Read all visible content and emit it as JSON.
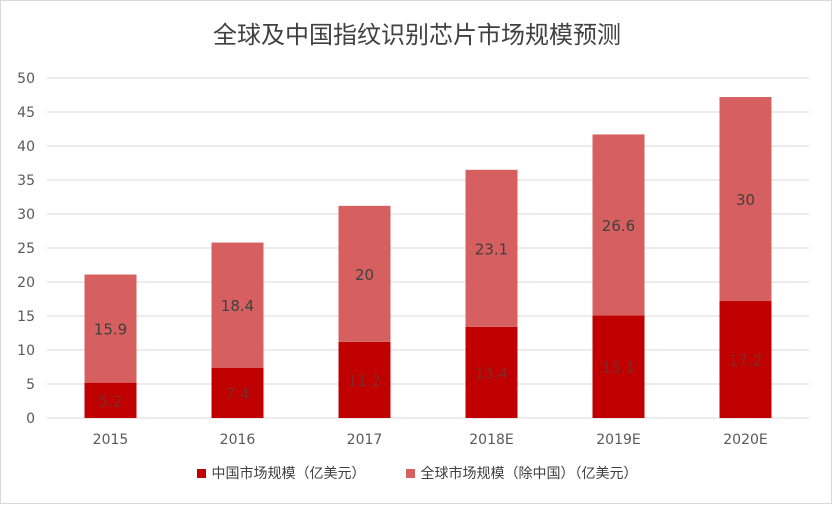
{
  "chart_data": {
    "type": "bar",
    "stacked": true,
    "title": "全球及中国指纹识别芯片市场规模预测",
    "categories": [
      "2015",
      "2016",
      "2017",
      "2018E",
      "2019E",
      "2020E"
    ],
    "series": [
      {
        "name": "中国市场规模（亿美元）",
        "values": [
          5.2,
          7.4,
          11.2,
          13.4,
          15.1,
          17.2
        ],
        "color": "#c00000",
        "label_color": "#7f2a2a"
      },
      {
        "name": "全球市场规模（除中国）（亿美元）",
        "values": [
          15.9,
          18.4,
          20,
          23.1,
          26.6,
          30
        ],
        "color": "#d65f5f",
        "label_color": "#404040"
      }
    ],
    "ylim": [
      0,
      50
    ],
    "yticks": [
      "0",
      "5",
      "10",
      "15",
      "20",
      "25",
      "30",
      "35",
      "40",
      "45",
      "50"
    ],
    "grid": true,
    "legend": "bottom"
  }
}
